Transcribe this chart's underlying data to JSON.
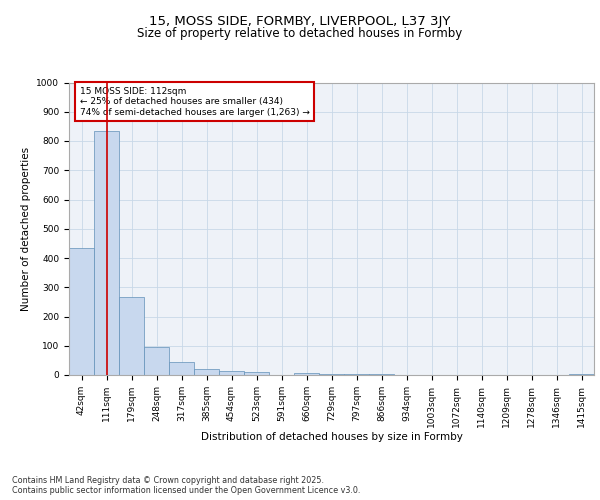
{
  "title": "15, MOSS SIDE, FORMBY, LIVERPOOL, L37 3JY",
  "subtitle": "Size of property relative to detached houses in Formby",
  "xlabel": "Distribution of detached houses by size in Formby",
  "ylabel": "Number of detached properties",
  "bar_labels": [
    "42sqm",
    "111sqm",
    "179sqm",
    "248sqm",
    "317sqm",
    "385sqm",
    "454sqm",
    "523sqm",
    "591sqm",
    "660sqm",
    "729sqm",
    "797sqm",
    "866sqm",
    "934sqm",
    "1003sqm",
    "1072sqm",
    "1140sqm",
    "1209sqm",
    "1278sqm",
    "1346sqm",
    "1415sqm"
  ],
  "bar_values": [
    434,
    833,
    265,
    97,
    43,
    21,
    15,
    9,
    0,
    8,
    5,
    3,
    2,
    1,
    0,
    0,
    0,
    0,
    0,
    0,
    5
  ],
  "bar_color": "#c8d8ee",
  "bar_edge_color": "#6090b8",
  "vline_x": 1,
  "vline_color": "#cc0000",
  "ylim": [
    0,
    1000
  ],
  "yticks": [
    0,
    100,
    200,
    300,
    400,
    500,
    600,
    700,
    800,
    900,
    1000
  ],
  "annotation_text": "15 MOSS SIDE: 112sqm\n← 25% of detached houses are smaller (434)\n74% of semi-detached houses are larger (1,263) →",
  "annotation_box_color": "#cc0000",
  "grid_color": "#c8d8e8",
  "background_color": "#eef2f8",
  "footer_text": "Contains HM Land Registry data © Crown copyright and database right 2025.\nContains public sector information licensed under the Open Government Licence v3.0.",
  "title_fontsize": 9.5,
  "subtitle_fontsize": 8.5,
  "label_fontsize": 7.5,
  "tick_fontsize": 6.5,
  "annot_fontsize": 6.5,
  "footer_fontsize": 5.8
}
